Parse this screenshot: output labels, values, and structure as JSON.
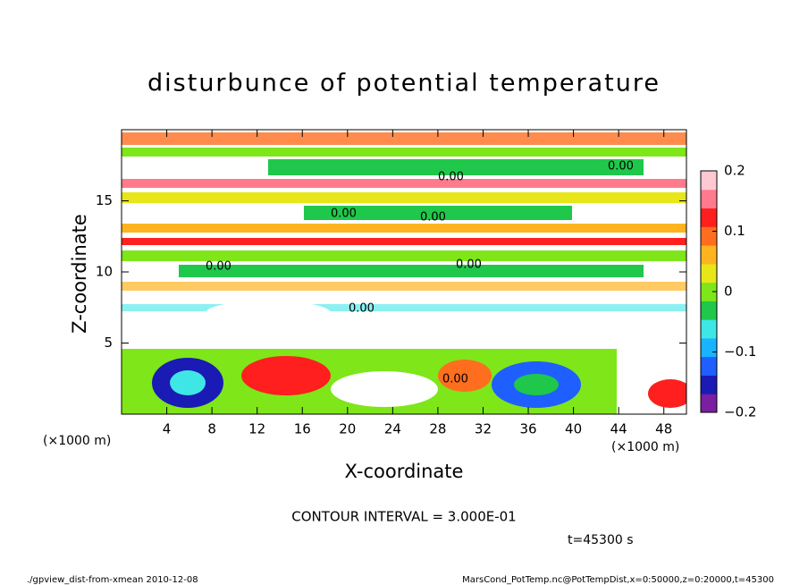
{
  "chart_data": {
    "type": "contour",
    "title": "disturbunce of potential temperature",
    "xlabel": "X-coordinate",
    "ylabel": "Z-coordinate",
    "xunit": "(×1000 m)",
    "yunit": "(×1000 m)",
    "xlim": [
      0,
      50
    ],
    "xticks": [
      4,
      8,
      12,
      16,
      20,
      24,
      28,
      32,
      36,
      40,
      44,
      48
    ],
    "ylim": [
      0,
      20
    ],
    "yticks": [
      5,
      10,
      15
    ],
    "colorbar": {
      "colors": [
        "#7a1fa2",
        "#1a1ab4",
        "#1f5fff",
        "#19b4ff",
        "#3fe6e6",
        "#1fc84b",
        "#7ee619",
        "#e6e619",
        "#ffb41f",
        "#ff6e1f",
        "#ff1f1f",
        "#ff7a8c",
        "#ffc8d2"
      ],
      "ylim": [
        -0.2,
        0.2
      ],
      "yticks": [
        {
          "value": -0.2,
          "label": "−0.2"
        },
        {
          "value": -0.1,
          "label": "−0.1"
        },
        0,
        0.1,
        0.2
      ]
    },
    "contour_labels": [
      "0.00",
      "0.00",
      "0.00",
      "0.00",
      "0.00",
      "0.00",
      "0.00",
      "0.00"
    ],
    "annotations": [
      "CONTOUR INTERVAL = 3.000E-01",
      "t=45300 s"
    ],
    "footer_left": "./gpview_dist-from-xmean  2010-12-08",
    "footer_right": "MarsCond_PotTemp.nc@PotTempDist,x=0:50000,z=0:20000,t=45300"
  }
}
